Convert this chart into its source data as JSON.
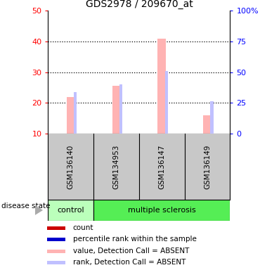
{
  "title": "GDS2978 / 209670_at",
  "samples": [
    "GSM136140",
    "GSM134953",
    "GSM136147",
    "GSM136149"
  ],
  "value_bars": [
    22,
    25.5,
    41,
    16
  ],
  "rank_bars": [
    23.5,
    26,
    30.5,
    20.5
  ],
  "left_ylim": [
    10,
    50
  ],
  "right_ylim": [
    0,
    100
  ],
  "left_yticks": [
    10,
    20,
    30,
    40,
    50
  ],
  "right_yticks": [
    0,
    25,
    50,
    75,
    100
  ],
  "right_yticklabels": [
    "0",
    "25",
    "50",
    "75",
    "100%"
  ],
  "bar_color_value": "#ffb3b3",
  "bar_color_rank": "#c0c0ff",
  "marker_color_count": "#cc0000",
  "marker_color_rank": "#0000cc",
  "bg_color_samples": "#c8c8c8",
  "bg_color_control": "#bbffbb",
  "bg_color_ms": "#55ee55",
  "legend_labels": [
    "count",
    "percentile rank within the sample",
    "value, Detection Call = ABSENT",
    "rank, Detection Call = ABSENT"
  ],
  "legend_colors": [
    "#cc0000",
    "#0000cc",
    "#ffb3b3",
    "#c0c0ff"
  ],
  "disease_state_label": "disease state",
  "control_label": "control",
  "ms_label": "multiple sclerosis",
  "left_color": "red",
  "right_color": "blue",
  "title_fontsize": 10,
  "tick_fontsize": 8,
  "sample_fontsize": 7.5,
  "legend_fontsize": 7.5
}
